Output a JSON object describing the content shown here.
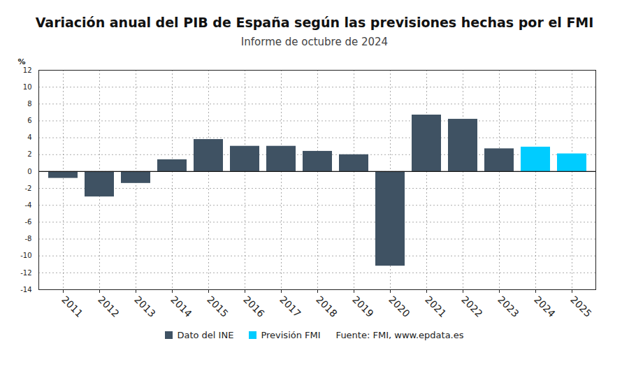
{
  "chart_data": {
    "type": "bar",
    "title": "Variación anual del PIB de España según las previsiones hechas por el FMI",
    "subtitle": "Informe de octubre de 2024",
    "y_label": "%",
    "source": "Fuente: FMI, www.epdata.es",
    "categories": [
      "2011",
      "2012",
      "2013",
      "2014",
      "2015",
      "2016",
      "2017",
      "2018",
      "2019",
      "2020",
      "2021",
      "2022",
      "2023",
      "2024",
      "2025"
    ],
    "series": [
      {
        "name": "Dato del INE",
        "color": "#3f5263",
        "values": [
          -0.8,
          -3.0,
          -1.4,
          1.4,
          3.8,
          3.0,
          3.0,
          2.4,
          2.0,
          -11.2,
          6.7,
          6.2,
          2.7,
          null,
          null
        ]
      },
      {
        "name": "Previsión FMI",
        "color": "#00ccff",
        "values": [
          null,
          null,
          null,
          null,
          null,
          null,
          null,
          null,
          null,
          null,
          null,
          null,
          null,
          2.9,
          2.1
        ]
      }
    ],
    "ylim": [
      -14,
      12
    ],
    "yticks": [
      -14,
      -12,
      -10,
      -8,
      -6,
      -4,
      -2,
      0,
      2,
      4,
      6,
      8,
      10,
      12
    ],
    "grid": true,
    "legend": "bottom"
  }
}
